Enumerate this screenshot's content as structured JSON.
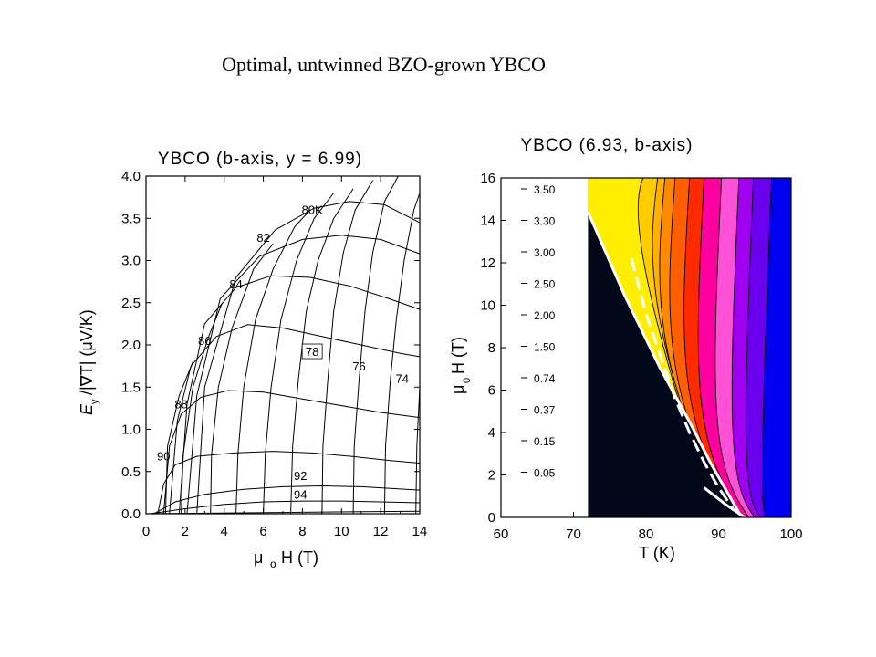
{
  "page_title": "Optimal, untwinned BZO-grown YBCO",
  "chart_data": [
    {
      "type": "line",
      "title": "YBCO (b-axis, y = 6.99)",
      "xlabel": "μ o H (T)",
      "ylabel": "E y /|∇T| (μV/K)",
      "xlim": [
        0,
        14
      ],
      "ylim": [
        0,
        4
      ],
      "xticks": [
        "0",
        "2",
        "4",
        "6",
        "8",
        "10",
        "12",
        "14"
      ],
      "yticks": [
        "0.0",
        "0.5",
        "1.0",
        "1.5",
        "2.0",
        "2.5",
        "3.0",
        "3.5",
        "4.0"
      ],
      "grid": false,
      "series": [
        {
          "name": "80K",
          "label_at": [
            8.5,
            3.55
          ],
          "points": [
            [
              2.6,
              0
            ],
            [
              3.0,
              1.5
            ],
            [
              4.6,
              2.8
            ],
            [
              6.6,
              3.36
            ],
            [
              8.6,
              3.62
            ],
            [
              10.4,
              3.7
            ],
            [
              12.2,
              3.66
            ],
            [
              14,
              3.45
            ]
          ]
        },
        {
          "name": "82",
          "label_at": [
            6.0,
            3.22
          ],
          "points": [
            [
              2.1,
              0
            ],
            [
              2.6,
              1.4
            ],
            [
              3.8,
              2.55
            ],
            [
              5.8,
              3.05
            ],
            [
              8.0,
              3.25
            ],
            [
              10.0,
              3.3
            ],
            [
              12.0,
              3.25
            ],
            [
              14,
              3.08
            ]
          ]
        },
        {
          "name": "84",
          "label_at": [
            4.6,
            2.67
          ],
          "points": [
            [
              1.7,
              0
            ],
            [
              2.1,
              1.3
            ],
            [
              3.0,
              2.25
            ],
            [
              4.6,
              2.68
            ],
            [
              6.4,
              2.82
            ],
            [
              8.4,
              2.8
            ],
            [
              10.4,
              2.7
            ],
            [
              12.4,
              2.55
            ],
            [
              14,
              2.42
            ]
          ]
        },
        {
          "name": "86",
          "label_at": [
            3.0,
            2.0
          ],
          "points": [
            [
              1.2,
              0
            ],
            [
              1.6,
              1.1
            ],
            [
              2.3,
              1.75
            ],
            [
              3.6,
              2.1
            ],
            [
              5.2,
              2.24
            ],
            [
              7.0,
              2.2
            ],
            [
              9.0,
              2.1
            ],
            [
              11.0,
              2.0
            ],
            [
              13.0,
              1.9
            ],
            [
              14,
              1.86
            ]
          ]
        },
        {
          "name": "88",
          "label_at": [
            1.8,
            1.25
          ],
          "points": [
            [
              0.9,
              0
            ],
            [
              1.2,
              0.8
            ],
            [
              1.8,
              1.18
            ],
            [
              2.8,
              1.38
            ],
            [
              4.2,
              1.46
            ],
            [
              6.0,
              1.44
            ],
            [
              8.0,
              1.36
            ],
            [
              10.0,
              1.28
            ],
            [
              12.0,
              1.2
            ],
            [
              14,
              1.14
            ]
          ]
        },
        {
          "name": "90",
          "label_at": [
            0.9,
            0.63
          ],
          "points": [
            [
              0.6,
              0
            ],
            [
              0.9,
              0.35
            ],
            [
              1.5,
              0.58
            ],
            [
              2.6,
              0.68
            ],
            [
              4.5,
              0.72
            ],
            [
              6.5,
              0.74
            ],
            [
              8.5,
              0.72
            ],
            [
              10.5,
              0.68
            ],
            [
              12.5,
              0.63
            ],
            [
              14,
              0.6
            ]
          ]
        },
        {
          "name": "92",
          "label_at": [
            7.9,
            0.4
          ],
          "points": [
            [
              0.4,
              0
            ],
            [
              1.5,
              0.14
            ],
            [
              3.0,
              0.23
            ],
            [
              5.0,
              0.29
            ],
            [
              7.0,
              0.32
            ],
            [
              9.0,
              0.33
            ],
            [
              11.0,
              0.32
            ],
            [
              12.5,
              0.3
            ],
            [
              14,
              0.28
            ]
          ]
        },
        {
          "name": "94",
          "label_at": [
            7.9,
            0.18
          ],
          "points": [
            [
              0.2,
              0
            ],
            [
              2.0,
              0.06
            ],
            [
              4.0,
              0.11
            ],
            [
              6.0,
              0.14
            ],
            [
              8.0,
              0.15
            ],
            [
              10.0,
              0.15
            ],
            [
              12.0,
              0.14
            ],
            [
              14,
              0.13
            ]
          ]
        },
        {
          "name": "",
          "points": [
            [
              0,
              0
            ],
            [
              14,
              0.03
            ]
          ]
        },
        {
          "name": "",
          "points": [
            [
              1.0,
              0
            ],
            [
              1.1,
              0.8
            ],
            [
              1.7,
              1.4
            ],
            [
              2.4,
              1.8
            ]
          ]
        },
        {
          "name": "",
          "points": [
            [
              1.8,
              0
            ],
            [
              1.9,
              0.7
            ],
            [
              2.4,
              1.5
            ],
            [
              3.2,
              2.1
            ],
            [
              3.9,
              2.5
            ]
          ]
        },
        {
          "name": "",
          "points": [
            [
              3.3,
              0
            ],
            [
              3.35,
              0.7
            ],
            [
              3.7,
              1.5
            ],
            [
              4.4,
              2.2
            ],
            [
              5.5,
              2.9
            ],
            [
              6.5,
              3.2
            ]
          ]
        },
        {
          "name": "",
          "points": [
            [
              4.6,
              0
            ],
            [
              4.7,
              0.7
            ],
            [
              5.0,
              1.5
            ],
            [
              5.6,
              2.3
            ],
            [
              6.5,
              2.9
            ],
            [
              7.6,
              3.4
            ],
            [
              8.4,
              3.6
            ]
          ]
        },
        {
          "name": "",
          "points": [
            [
              6.0,
              0
            ],
            [
              6.1,
              0.7
            ],
            [
              6.4,
              1.5
            ],
            [
              6.9,
              2.3
            ],
            [
              7.7,
              3.0
            ],
            [
              8.6,
              3.5
            ],
            [
              9.6,
              3.8
            ]
          ]
        },
        {
          "name": "78",
          "label_at": [
            8.5,
            1.87
          ],
          "points": [
            [
              7.4,
              0
            ],
            [
              7.5,
              0.8
            ],
            [
              7.8,
              1.6
            ],
            [
              8.2,
              2.4
            ],
            [
              8.8,
              3.0
            ],
            [
              9.6,
              3.5
            ],
            [
              10.6,
              3.85
            ]
          ]
        },
        {
          "name": "",
          "points": [
            [
              9.0,
              0
            ],
            [
              9.05,
              0.8
            ],
            [
              9.3,
              1.6
            ],
            [
              9.6,
              2.4
            ],
            [
              10.1,
              3.1
            ],
            [
              10.7,
              3.6
            ],
            [
              11.6,
              3.95
            ]
          ]
        },
        {
          "name": "76",
          "label_at": [
            10.9,
            1.7
          ],
          "points": [
            [
              10.6,
              0
            ],
            [
              10.65,
              0.8
            ],
            [
              10.9,
              1.6
            ],
            [
              11.2,
              2.4
            ],
            [
              11.6,
              3.1
            ],
            [
              12.2,
              3.7
            ],
            [
              12.9,
              4.0
            ]
          ]
        },
        {
          "name": "",
          "points": [
            [
              12.2,
              0
            ],
            [
              12.25,
              0.8
            ],
            [
              12.5,
              1.6
            ],
            [
              12.8,
              2.3
            ],
            [
              13.2,
              3.0
            ],
            [
              13.7,
              3.6
            ],
            [
              14,
              3.8
            ]
          ]
        },
        {
          "name": "74",
          "label_at": [
            13.1,
            1.55
          ],
          "points": [
            [
              13.8,
              0
            ],
            [
              13.85,
              0.8
            ],
            [
              14.0,
              1.5
            ]
          ]
        }
      ]
    },
    {
      "type": "heatmap",
      "title": "YBCO (6.93, b-axis)",
      "xlabel": "T (K)",
      "ylabel": "μ 0 H (T)",
      "xlim": [
        60,
        100
      ],
      "ylim": [
        0,
        16
      ],
      "xticks": [
        "60",
        "70",
        "80",
        "90",
        "100"
      ],
      "yticks": [
        "0",
        "2",
        "4",
        "6",
        "8",
        "10",
        "12",
        "14",
        "16"
      ],
      "grid": false,
      "legend_position": "left",
      "legend_levels": [
        "3.50",
        "3.30",
        "3.00",
        "2.50",
        "2.00",
        "1.50",
        "0.74",
        "0.37",
        "0.15",
        "0.05"
      ],
      "band_colors": [
        "#0000f0",
        "#6a00ee",
        "#a000f0",
        "#ff50d8",
        "#ff00a0",
        "#ff2a00",
        "#ff5f00",
        "#ff8a00",
        "#ffb000",
        "#ffcc00",
        "#ffee00"
      ],
      "region_colors": {
        "black_region": "#02081a",
        "onset_line": "#ffffff"
      },
      "contour_boundaries_x_at_y16": [
        97.3,
        94.8,
        92.8,
        90.4,
        88.0,
        86.0,
        84.0,
        82.6,
        81.6,
        79.6
      ],
      "contour_boundaries_x_at_y0": [
        98.5,
        97.8,
        97.0,
        96.2,
        95.4,
        94.6,
        93.8,
        93.0,
        92.2,
        91.6
      ],
      "contour_knee_y": [
        0.3,
        0.8,
        1.5,
        2.4,
        3.4,
        4.6,
        5.9,
        7.4,
        9.2,
        11.8
      ],
      "black_edge": [
        [
          72,
          0
        ],
        [
          72,
          16
        ]
      ],
      "white_solid_line": [
        [
          72,
          14.4
        ],
        [
          77,
          10.5
        ],
        [
          82,
          7.0
        ],
        [
          86,
          4.5
        ],
        [
          89,
          2.5
        ],
        [
          91.5,
          1.0
        ],
        [
          93,
          0.1
        ]
      ],
      "white_lower_line": [
        [
          92,
          0
        ],
        [
          94,
          0
        ]
      ],
      "white_dashed_line": [
        [
          78,
          12.2
        ],
        [
          80,
          9.6
        ],
        [
          82,
          7.6
        ],
        [
          84,
          5.6
        ],
        [
          86,
          4.0
        ],
        [
          88,
          2.6
        ],
        [
          90,
          1.4
        ],
        [
          92,
          0.4
        ]
      ]
    }
  ]
}
